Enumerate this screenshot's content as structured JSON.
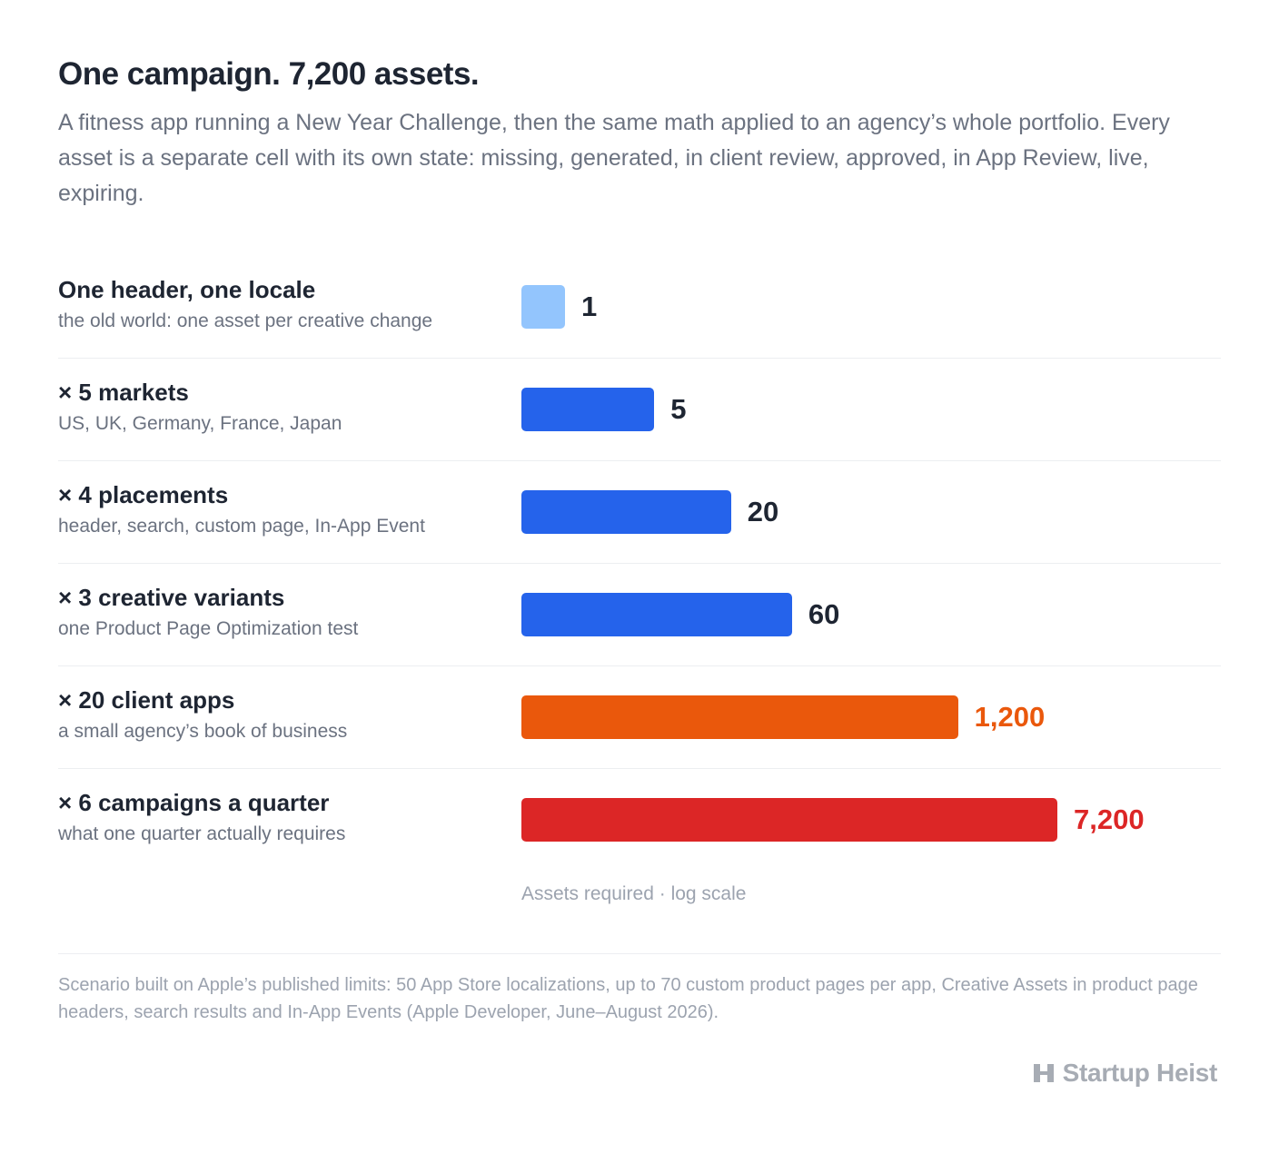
{
  "title": "One campaign. 7,200 assets.",
  "subtitle": "A fitness app running a New Year Challenge, then the same math applied to an agency’s whole portfolio. Every asset is a separate cell with its own state: missing, generated, in client review, approved, in App Review, live, expiring.",
  "chart_data": {
    "type": "bar",
    "orientation": "horizontal",
    "scale": "log",
    "categories": [
      "One header, one locale",
      "× 5 markets",
      "× 4 placements",
      "× 3 creative variants",
      "× 20 client apps",
      "× 6 campaigns a quarter"
    ],
    "descriptions": [
      "the old world: one asset per creative change",
      "US, UK, Germany, France, Japan",
      "header, search, custom page, In-App Event",
      "one Product Page Optimization test",
      "a small agency’s book of business",
      "what one quarter actually requires"
    ],
    "values": [
      1,
      5,
      20,
      60,
      1200,
      7200
    ],
    "value_labels": [
      "1",
      "5",
      "20",
      "60",
      "1,200",
      "7,200"
    ],
    "bar_colors": [
      "#93c5fd",
      "#2563eb",
      "#2563eb",
      "#2563eb",
      "#ea580c",
      "#dc2626"
    ],
    "label_colors": [
      "#1e2532",
      "#1e2532",
      "#1e2532",
      "#1e2532",
      "#ea580c",
      "#dc2626"
    ],
    "xlabel": "Assets required · log scale"
  },
  "footnote": "Scenario built on Apple’s published limits: 50 App Store localizations, up to 70 custom product pages per app, Creative Assets in product page headers, search results and In-App Events (Apple Developer, June–August 2026).",
  "brand": {
    "name": "Startup Heist",
    "icon": "building-icon"
  }
}
